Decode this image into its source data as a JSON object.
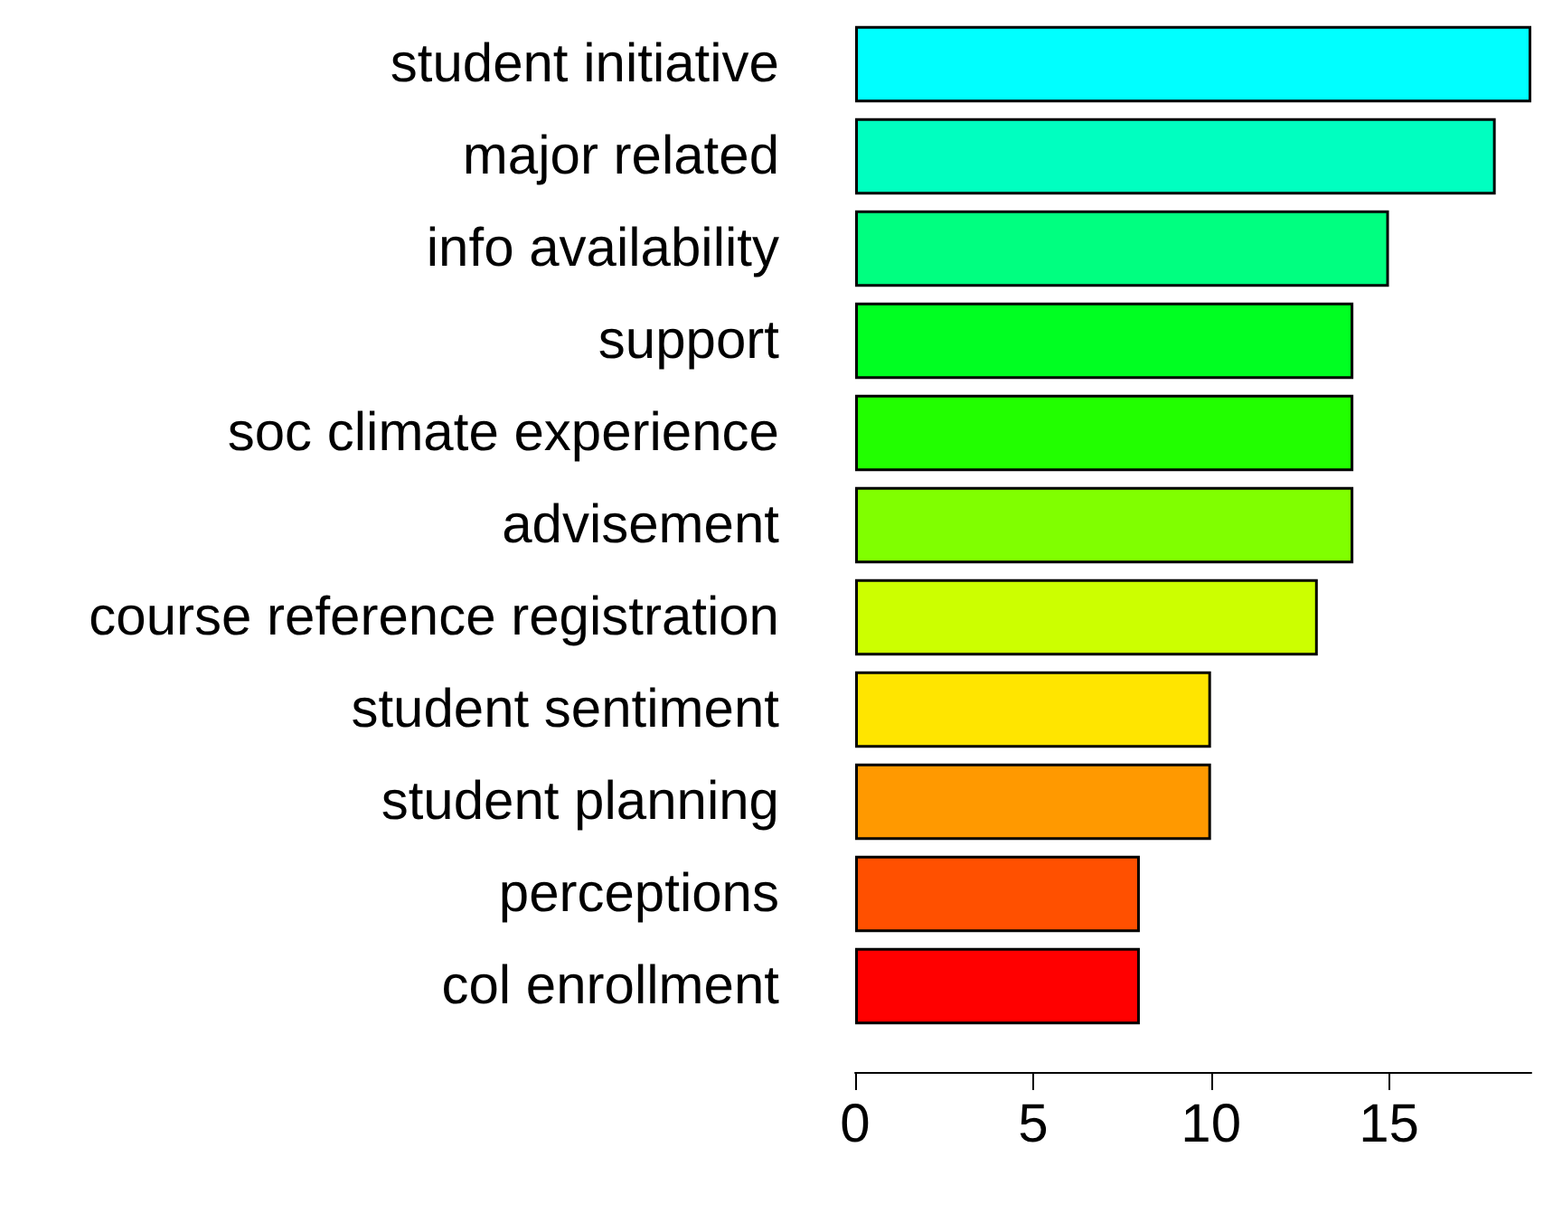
{
  "chart_data": {
    "type": "bar",
    "orientation": "horizontal",
    "categories": [
      "student initiative",
      "major related",
      "info availability",
      "support",
      "soc climate experience",
      "advisement",
      "course reference registration",
      "student sentiment",
      "student planning",
      "perceptions",
      "col enrollment"
    ],
    "values": [
      19,
      18,
      15,
      14,
      14,
      14,
      13,
      10,
      10,
      8,
      8
    ],
    "colors": [
      "#00ffff",
      "#00ffc0",
      "#00ff80",
      "#00ff22",
      "#22ff00",
      "#80ff00",
      "#ccff00",
      "#ffe500",
      "#ff9900",
      "#ff5000",
      "#ff0000"
    ],
    "xlim": [
      0,
      19
    ],
    "xticks": [
      0,
      5,
      10,
      15
    ],
    "grid": false
  }
}
